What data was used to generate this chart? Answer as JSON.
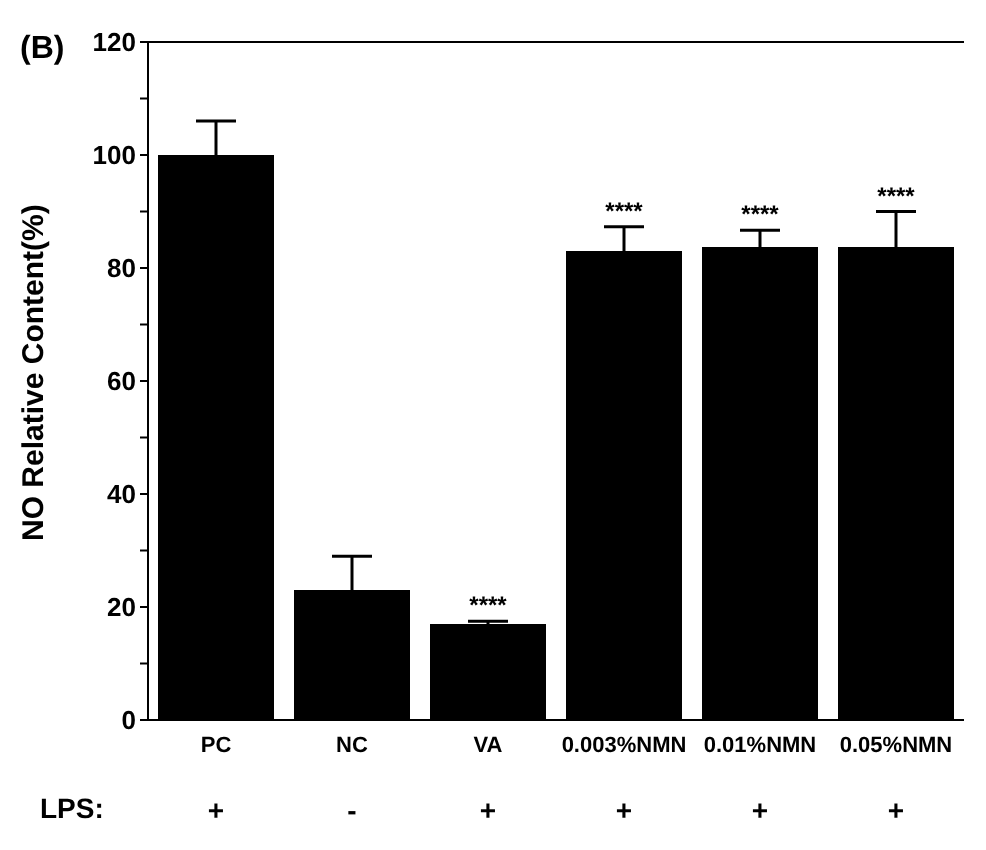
{
  "chart_data": {
    "type": "bar",
    "ylabel": "NO Relative Content(%)",
    "categories": [
      "PC",
      "NC",
      "VA",
      "0.003%NMN",
      "0.01%NMN",
      "0.05%NMN"
    ],
    "values": [
      100,
      23,
      17,
      83,
      83.7,
      83.7
    ],
    "errors": [
      6,
      6,
      0.5,
      4.3,
      3,
      6.3
    ],
    "color": "#000000",
    "ylim": [
      0,
      120
    ],
    "yticks": [
      0,
      {
        "value": 10,
        "label": null
      },
      20,
      {
        "value": 30,
        "label": null
      },
      40,
      {
        "value": 50,
        "label": null
      },
      60,
      {
        "value": 70,
        "label": null
      },
      80,
      {
        "value": 90,
        "label": null
      },
      100,
      {
        "value": 110,
        "label": null
      },
      120
    ],
    "annotations": [
      "(B)",
      "LPS:",
      "+",
      "-",
      "+",
      "+",
      "+",
      "+",
      {
        "text": "****",
        "x": "VA",
        "y": 17.5
      },
      {
        "text": "****",
        "x": "0.003%NMN",
        "y": 87.3
      },
      {
        "text": "****",
        "x": "0.01%NMN",
        "y": 86.7
      },
      {
        "text": "****",
        "x": "0.05%NMN",
        "y": 90
      }
    ]
  }
}
